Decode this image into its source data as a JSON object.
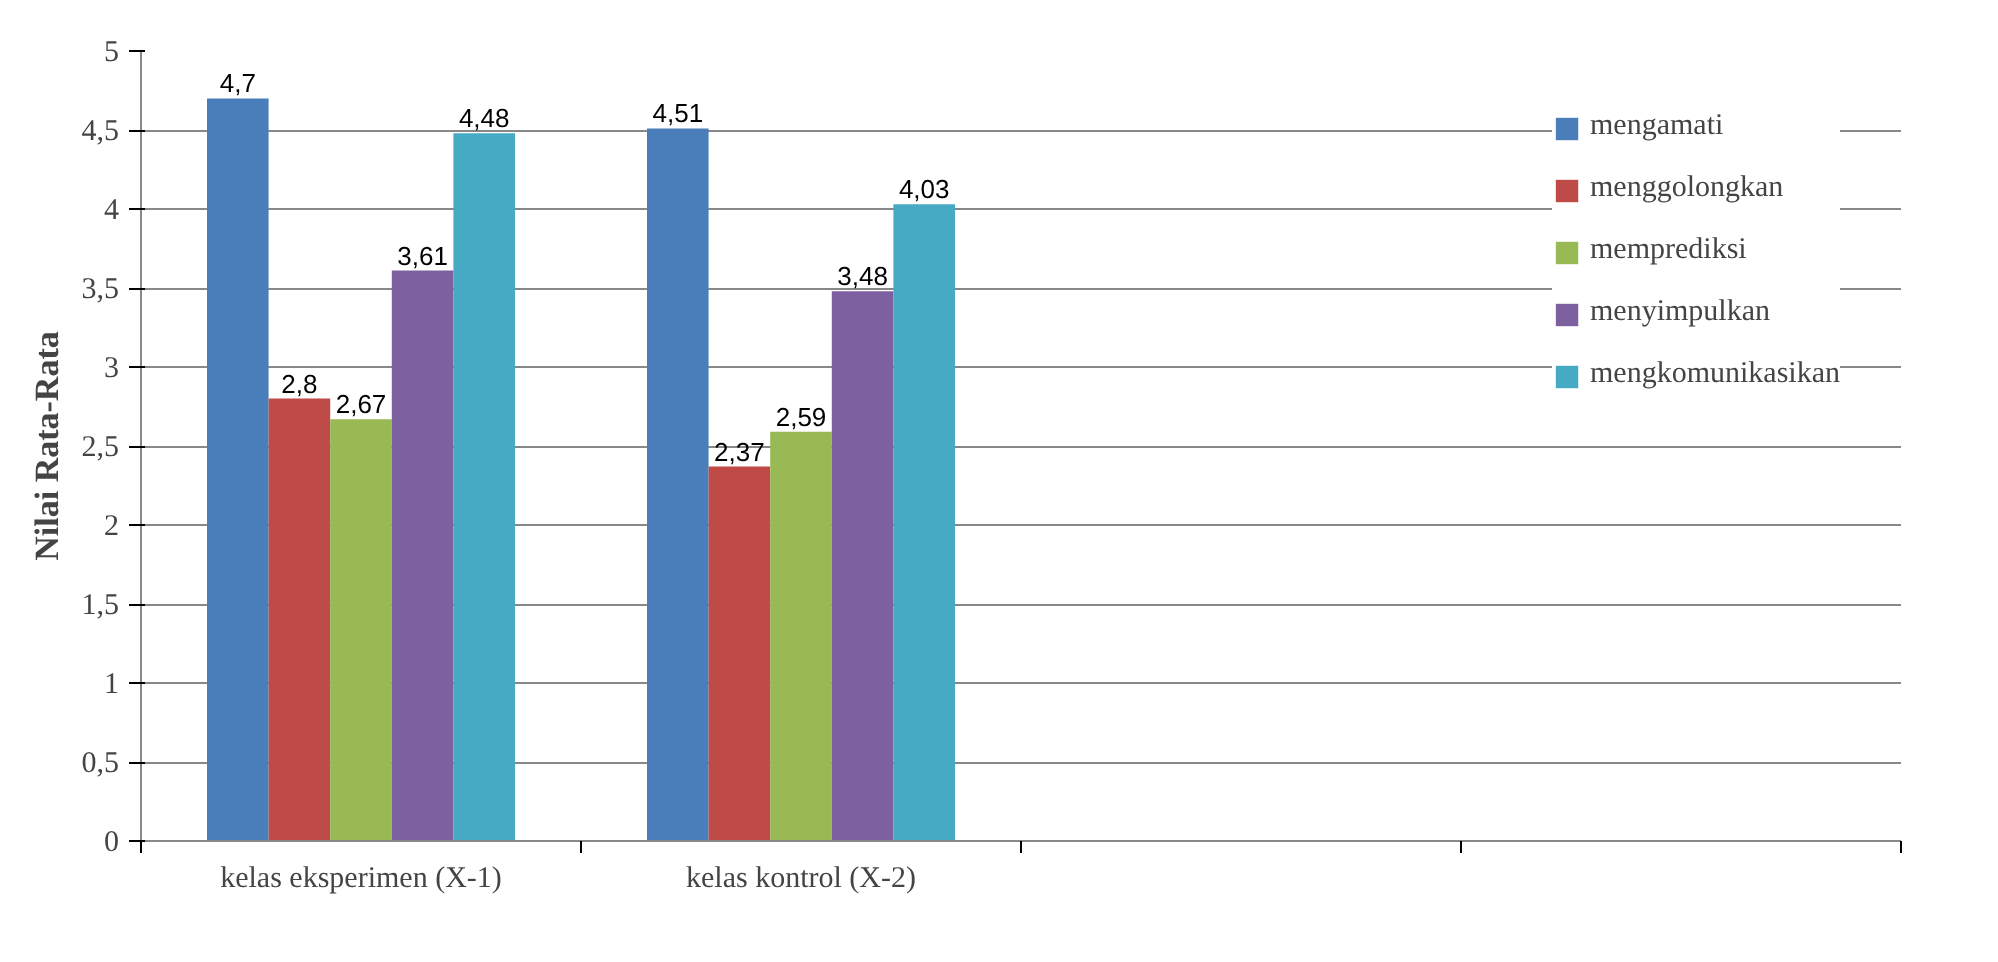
{
  "chart_data": {
    "type": "bar",
    "ylabel": "Nilai Rata-Rata",
    "categories": [
      "kelas eksperimen (X-1)",
      "kelas kontrol (X-2)",
      null,
      null
    ],
    "series": [
      {
        "name": "mengamati",
        "color": "#4a7ebb",
        "values": [
          4.7,
          4.51,
          null,
          null
        ],
        "value_labels": [
          "4,7",
          "4,51",
          null,
          null
        ]
      },
      {
        "name": "menggolongkan",
        "color": "#be4b48",
        "values": [
          2.8,
          2.37,
          null,
          null
        ],
        "value_labels": [
          "2,8",
          "2,37",
          null,
          null
        ]
      },
      {
        "name": "memprediksi",
        "color": "#98b954",
        "values": [
          2.67,
          2.59,
          null,
          null
        ],
        "value_labels": [
          "2,67",
          "2,59",
          null,
          null
        ]
      },
      {
        "name": "menyimpulkan",
        "color": "#7d60a0",
        "values": [
          3.61,
          3.48,
          null,
          null
        ],
        "value_labels": [
          "3,61",
          "3,48",
          null,
          null
        ]
      },
      {
        "name": "mengkomunikasikan",
        "color": "#46aac5",
        "values": [
          4.48,
          4.03,
          null,
          null
        ],
        "value_labels": [
          "4,48",
          "4,03",
          null,
          null
        ]
      }
    ],
    "ylim": [
      0,
      5
    ],
    "yticks": [
      0,
      {
        "value": 0.5,
        "label": "0,5"
      },
      1,
      {
        "value": 1.5,
        "label": "1,5"
      },
      2,
      {
        "value": 2.5,
        "label": "2,5"
      },
      3,
      {
        "value": 3.5,
        "label": "3,5"
      },
      4,
      {
        "value": 4.5,
        "label": "4,5"
      },
      5
    ],
    "grid": "y",
    "legend": "top right"
  }
}
